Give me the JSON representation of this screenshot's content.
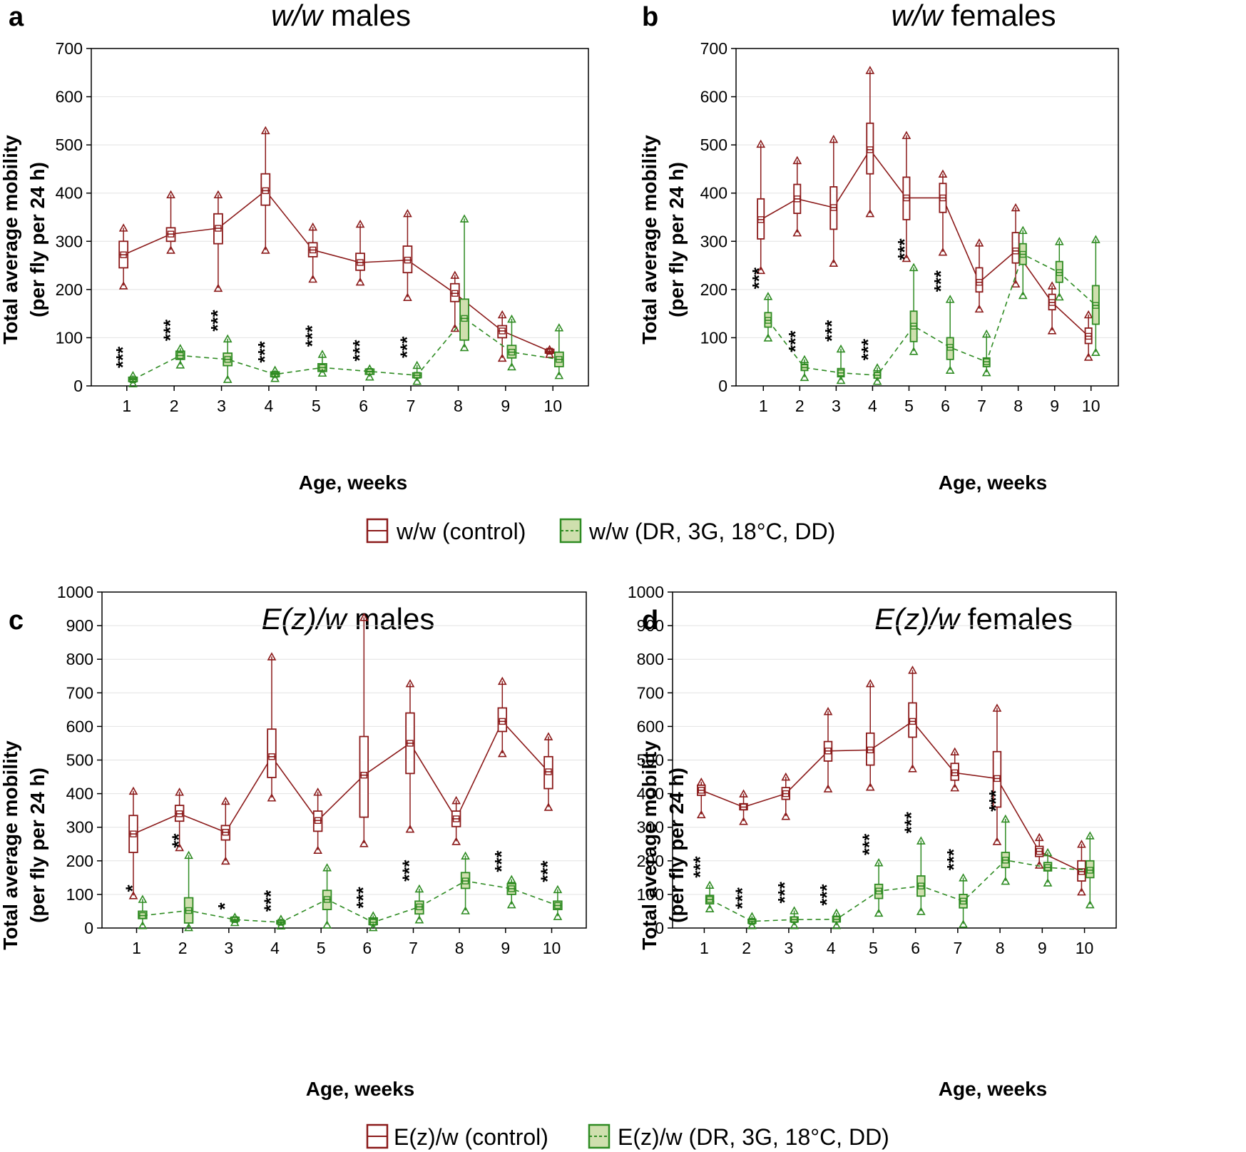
{
  "legends": [
    {
      "items": [
        {
          "label": "w/w (control)",
          "color": "#8b1a1a",
          "fill": "none"
        },
        {
          "label": "w/w (DR, 3G, 18°C, DD)",
          "color": "#2e8b22",
          "fill": "#cfdfae"
        }
      ]
    },
    {
      "items": [
        {
          "label": "E(z)/w (control)",
          "color": "#8b1a1a",
          "fill": "none"
        },
        {
          "label": "E(z)/w (DR, 3G, 18°C, DD)",
          "color": "#2e8b22",
          "fill": "#cfdfae"
        }
      ]
    }
  ],
  "chart_data": [
    {
      "type": "box",
      "panel": "a",
      "title_italic": "w/w",
      "title_rest": " males",
      "xlabel": "Age, weeks",
      "ylabel_line1": "Total average mobility",
      "ylabel_line2": "(per fly per 24 h)",
      "ylim": [
        0,
        700
      ],
      "yticks": [
        0,
        100,
        200,
        300,
        400,
        500,
        600,
        700
      ],
      "categories": [
        "1",
        "2",
        "3",
        "4",
        "5",
        "6",
        "7",
        "8",
        "9",
        "10"
      ],
      "grid": true,
      "series": [
        {
          "color": "#8b1a1a",
          "fill": "none",
          "line_style": "solid",
          "medians": [
            272,
            315,
            327,
            405,
            282,
            256,
            261,
            192,
            114,
            72
          ],
          "q1": [
            245,
            300,
            295,
            375,
            268,
            240,
            235,
            175,
            100,
            68
          ],
          "q3": [
            300,
            328,
            357,
            440,
            297,
            275,
            290,
            212,
            125,
            76
          ],
          "min": [
            208,
            282,
            203,
            282,
            222,
            216,
            184,
            120,
            58,
            66
          ],
          "max": [
            328,
            397,
            397,
            530,
            330,
            336,
            358,
            230,
            148,
            76
          ]
        },
        {
          "color": "#2e8b22",
          "fill": "#cfdfae",
          "line_style": "dashed",
          "medians": [
            13,
            63,
            55,
            24,
            38,
            30,
            22,
            140,
            70,
            55
          ],
          "q1": [
            9,
            55,
            42,
            19,
            30,
            24,
            17,
            95,
            58,
            40
          ],
          "q3": [
            18,
            72,
            68,
            29,
            46,
            35,
            27,
            180,
            84,
            70
          ],
          "min": [
            5,
            44,
            14,
            16,
            27,
            19,
            10,
            80,
            40,
            22
          ],
          "max": [
            22,
            78,
            98,
            33,
            66,
            36,
            43,
            347,
            139,
            121
          ]
        }
      ],
      "significance": [
        "***",
        "***",
        "***",
        "***",
        "***",
        "***",
        "***",
        "",
        "",
        ""
      ]
    },
    {
      "type": "box",
      "panel": "b",
      "title_italic": "w/w",
      "title_rest": " females",
      "xlabel": "Age, weeks",
      "ylabel_line1": "Total average mobility",
      "ylabel_line2": "(per fly per 24 h)",
      "ylim": [
        0,
        700
      ],
      "yticks": [
        0,
        100,
        200,
        300,
        400,
        500,
        600,
        700
      ],
      "categories": [
        "1",
        "2",
        "3",
        "4",
        "5",
        "6",
        "7",
        "8",
        "9",
        "10"
      ],
      "grid": true,
      "series": [
        {
          "color": "#8b1a1a",
          "fill": "none",
          "line_style": "solid",
          "medians": [
            345,
            388,
            370,
            490,
            390,
            390,
            215,
            280,
            173,
            103
          ],
          "q1": [
            305,
            358,
            325,
            440,
            345,
            360,
            195,
            255,
            158,
            88
          ],
          "q3": [
            388,
            418,
            413,
            545,
            433,
            420,
            245,
            318,
            190,
            120
          ],
          "min": [
            240,
            318,
            255,
            358,
            265,
            278,
            160,
            212,
            115,
            60
          ],
          "max": [
            502,
            468,
            512,
            655,
            520,
            440,
            297,
            370,
            208,
            148
          ]
        },
        {
          "color": "#2e8b22",
          "fill": "#cfdfae",
          "line_style": "dashed",
          "medians": [
            136,
            38,
            27,
            22,
            124,
            80,
            50,
            273,
            235,
            167
          ],
          "q1": [
            122,
            32,
            19,
            16,
            92,
            55,
            40,
            252,
            215,
            128
          ],
          "q3": [
            152,
            45,
            36,
            28,
            155,
            100,
            58,
            295,
            258,
            208
          ],
          "min": [
            100,
            18,
            12,
            10,
            72,
            33,
            28,
            188,
            185,
            70
          ],
          "max": [
            186,
            55,
            77,
            38,
            246,
            180,
            108,
            323,
            300,
            304
          ]
        }
      ],
      "significance": [
        "***",
        "***",
        "***",
        "***",
        "***",
        "***",
        "",
        "",
        "",
        ""
      ]
    },
    {
      "type": "box",
      "panel": "c",
      "title_italic": "E(z)/w",
      "title_rest": " males",
      "xlabel": "Age, weeks",
      "ylabel_line1": "Total average mobility",
      "ylabel_line2": "(per fly per 24 h)",
      "ylim": [
        0,
        1000
      ],
      "yticks": [
        0,
        100,
        200,
        300,
        400,
        500,
        600,
        700,
        800,
        900,
        1000
      ],
      "categories": [
        "1",
        "2",
        "3",
        "4",
        "5",
        "6",
        "7",
        "8",
        "9",
        "10"
      ],
      "grid": true,
      "series": [
        {
          "color": "#8b1a1a",
          "fill": "none",
          "line_style": "solid",
          "medians": [
            280,
            340,
            285,
            510,
            320,
            455,
            550,
            325,
            615,
            465
          ],
          "q1": [
            225,
            318,
            262,
            448,
            288,
            330,
            460,
            302,
            585,
            415
          ],
          "q3": [
            335,
            365,
            305,
            592,
            348,
            570,
            640,
            348,
            655,
            510
          ],
          "min": [
            97,
            240,
            200,
            388,
            232,
            252,
            295,
            258,
            520,
            360
          ],
          "max": [
            408,
            405,
            378,
            808,
            405,
            925,
            728,
            380,
            735,
            570
          ]
        },
        {
          "color": "#2e8b22",
          "fill": "#cfdfae",
          "line_style": "dashed",
          "medians": [
            37,
            52,
            25,
            17,
            85,
            17,
            63,
            140,
            117,
            67
          ],
          "q1": [
            28,
            15,
            20,
            12,
            55,
            10,
            42,
            118,
            100,
            55
          ],
          "q3": [
            50,
            90,
            32,
            22,
            112,
            30,
            80,
            165,
            132,
            80
          ],
          "min": [
            8,
            2,
            17,
            7,
            10,
            2,
            25,
            52,
            70,
            35
          ],
          "max": [
            86,
            217,
            33,
            27,
            180,
            37,
            117,
            215,
            145,
            115
          ]
        }
      ],
      "significance": [
        "*",
        "**",
        "*",
        "***",
        "",
        "***",
        "***",
        "",
        "***",
        "***"
      ]
    },
    {
      "type": "box",
      "panel": "d",
      "title_italic": "E(z)/w",
      "title_rest": " females",
      "xlabel": "Age, weeks",
      "ylabel_line1": "Total average mobility",
      "ylabel_line2": "(per fly per 24 h)",
      "ylim": [
        0,
        1000
      ],
      "yticks": [
        0,
        100,
        200,
        300,
        400,
        500,
        600,
        700,
        800,
        900,
        1000
      ],
      "categories": [
        "1",
        "2",
        "3",
        "4",
        "5",
        "6",
        "7",
        "8",
        "9",
        "10"
      ],
      "grid": true,
      "series": [
        {
          "color": "#8b1a1a",
          "fill": "none",
          "line_style": "solid",
          "medians": [
            410,
            360,
            400,
            527,
            530,
            615,
            462,
            445,
            228,
            168
          ],
          "q1": [
            395,
            352,
            383,
            497,
            485,
            568,
            440,
            360,
            213,
            140
          ],
          "q3": [
            425,
            370,
            418,
            555,
            580,
            670,
            490,
            525,
            243,
            200
          ],
          "min": [
            338,
            318,
            333,
            415,
            420,
            475,
            418,
            258,
            188,
            108
          ],
          "max": [
            435,
            400,
            450,
            645,
            728,
            768,
            525,
            655,
            270,
            250
          ]
        },
        {
          "color": "#2e8b22",
          "fill": "#cfdfae",
          "line_style": "dashed",
          "medians": [
            85,
            20,
            25,
            26,
            110,
            125,
            80,
            202,
            180,
            172
          ],
          "q1": [
            72,
            14,
            18,
            18,
            88,
            95,
            60,
            180,
            170,
            150
          ],
          "q3": [
            97,
            26,
            33,
            34,
            130,
            155,
            100,
            225,
            195,
            200
          ],
          "min": [
            58,
            8,
            8,
            8,
            45,
            50,
            12,
            140,
            135,
            70
          ],
          "max": [
            128,
            35,
            52,
            45,
            195,
            260,
            150,
            325,
            225,
            275
          ]
        }
      ],
      "significance": [
        "***",
        "***",
        "***",
        "***",
        "***",
        "***",
        "***",
        "***",
        "",
        ""
      ]
    }
  ]
}
